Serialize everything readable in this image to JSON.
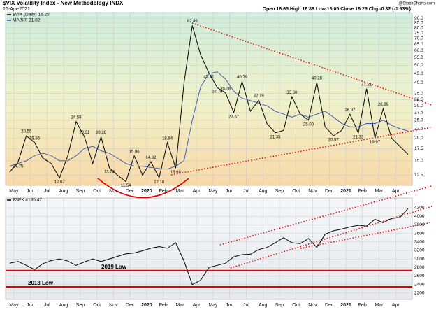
{
  "chart_data": [
    {
      "type": "line",
      "title": "$VIX Volatility Index - New Methodology INDX",
      "date": "16-Apr-2021",
      "quote": "Open 16.65 High 16.88 Low 16.05 Close 16.25 Chg -0.32 (-1.93%)",
      "source": "@StockCharts.com",
      "categories": [
        null,
        "May",
        null,
        "Jun",
        null,
        "Jul",
        null,
        "Aug",
        null,
        "Sep",
        null,
        "Oct",
        null,
        "Nov",
        null,
        "Dec",
        null,
        "2020",
        null,
        "Feb",
        null,
        "Mar",
        null,
        "Apr",
        null,
        "May",
        null,
        "Jun",
        null,
        "Jul",
        null,
        "Aug",
        null,
        "Sep",
        null,
        "Oct",
        null,
        "Nov",
        null,
        "Dec",
        null,
        "2021",
        null,
        "Feb",
        null,
        "Mar",
        null,
        "Apr",
        null
      ],
      "series": [
        {
          "name": "$VIX (Daily) 16.25",
          "color": "#000000",
          "values": [
            13,
            14.75,
            20.55,
            18.86,
            15.5,
            14.5,
            12.07,
            16,
            24.59,
            20.31,
            14.5,
            20.28,
            13.74,
            12.5,
            11.54,
            15.96,
            12.5,
            14.82,
            12.1,
            18.84,
            13.68,
            40,
            82.49,
            57,
            45.41,
            37.76,
            35.28,
            27.57,
            40.79,
            28,
            32.19,
            24,
            21.35,
            22,
            33.6,
            27,
            25,
            40.28,
            23,
            20.57,
            22,
            26.97,
            21.32,
            37.21,
            19.97,
            28.89,
            20,
            18,
            16.25
          ],
          "value_labels": [
            null,
            "14.75",
            "20.55",
            "18.86",
            null,
            null,
            "12.07",
            null,
            "24.59",
            "20.31",
            null,
            "20.28",
            "13.74",
            null,
            "11.54",
            "15.96",
            null,
            "14.82",
            "12.10",
            "18.84",
            "13.68",
            null,
            "82.49",
            null,
            "45.41",
            "37.76",
            "35.28",
            "27.57",
            "40.79",
            null,
            "32.19",
            null,
            "21.35",
            null,
            "33.60",
            null,
            "25.00",
            "40.28",
            null,
            "20.57",
            null,
            "26.97",
            "21.32",
            "37.21",
            "19.97",
            "28.89",
            null,
            null,
            null
          ]
        },
        {
          "name": "MA(50) 21.82",
          "color": "#3050b8",
          "values": [
            14,
            14.5,
            15,
            16,
            16.5,
            16,
            15,
            15,
            16,
            17.5,
            18,
            17,
            16.5,
            15.5,
            14.5,
            14,
            14,
            13.8,
            13.6,
            13.5,
            14,
            15,
            25,
            38,
            45,
            46,
            42,
            36,
            33,
            32,
            31,
            30,
            28,
            27,
            26,
            27,
            26,
            27,
            28,
            26,
            24,
            23,
            23,
            24,
            24,
            25,
            23.5,
            22.5,
            21.82
          ]
        }
      ],
      "log_scale": true,
      "ylim": [
        11,
        97
      ],
      "yticks": [
        {
          "value": 12.5,
          "label": "12.5"
        },
        {
          "value": 15,
          "label": "15.0"
        },
        {
          "value": 17.5,
          "label": "17.5"
        },
        {
          "value": 20,
          "label": "20.0"
        },
        {
          "value": 22.5,
          "label": "22.5"
        },
        {
          "value": 25,
          "label": "25.0"
        },
        {
          "value": 27.5,
          "label": "27.5"
        },
        {
          "value": 30,
          "label": "30.0"
        },
        {
          "value": 32.5,
          "label": "32.5"
        },
        {
          "value": 35,
          "label": "35.0"
        },
        {
          "value": 40,
          "label": "40.0"
        },
        {
          "value": 45,
          "label": "45.0"
        },
        {
          "value": 50,
          "label": "50.0"
        },
        {
          "value": 55,
          "label": "55.0"
        },
        {
          "value": 60,
          "label": "60.0"
        },
        {
          "value": 65,
          "label": "65.0"
        },
        {
          "value": 70,
          "label": "70.0"
        },
        {
          "value": 75,
          "label": "75.0"
        },
        {
          "value": 80,
          "label": "80.0"
        },
        {
          "value": 85,
          "label": "85.0"
        },
        {
          "value": 90,
          "label": "90.0"
        }
      ],
      "grid": true
    },
    {
      "type": "line",
      "categories": [
        null,
        "May",
        null,
        "Jun",
        null,
        "Jul",
        null,
        "Aug",
        null,
        "Sep",
        null,
        "Oct",
        null,
        "Nov",
        null,
        "Dec",
        null,
        "2020",
        null,
        "Feb",
        null,
        "Mar",
        null,
        "Apr",
        null,
        "May",
        null,
        "Jun",
        null,
        "Jul",
        null,
        "Aug",
        null,
        "Sep",
        null,
        "Oct",
        null,
        "Nov",
        null,
        "Dec",
        null,
        "2021",
        null,
        "Feb",
        null,
        "Mar",
        null,
        "Apr",
        null
      ],
      "series": [
        {
          "name": "$SPX 4185.47",
          "color": "#000000",
          "values": [
            2900,
            2940,
            2850,
            2750,
            2890,
            2960,
            3000,
            2950,
            2850,
            2930,
            3000,
            2940,
            3000,
            3060,
            3120,
            3140,
            3190,
            3250,
            3290,
            3250,
            3380,
            2950,
            2400,
            2500,
            2800,
            2850,
            2900,
            3050,
            3100,
            3110,
            3220,
            3270,
            3380,
            3500,
            3380,
            3360,
            3480,
            3270,
            3580,
            3660,
            3700,
            3750,
            3790,
            3770,
            3930,
            3850,
            3950,
            3970,
            4185.47
          ]
        }
      ],
      "reference_lines": [
        {
          "label": "2019 Low",
          "value": 2728,
          "color": "#e00000"
        },
        {
          "label": "2018 Low",
          "value": 2346,
          "color": "#e00000"
        }
      ],
      "ylim": [
        2050,
        4430
      ],
      "yticks": [
        2200,
        2400,
        2600,
        2800,
        3000,
        3200,
        3400,
        3600,
        3800,
        4000,
        4200
      ],
      "grid": true
    }
  ]
}
